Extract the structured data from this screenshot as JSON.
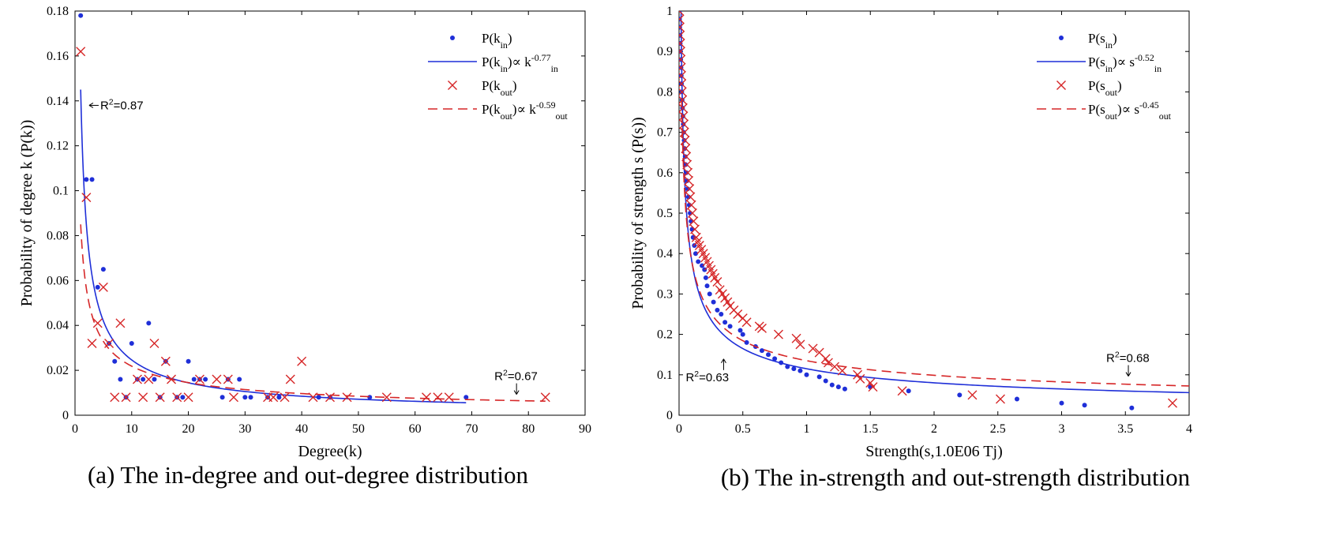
{
  "chart_data": [
    {
      "id": "a",
      "type": "scatter",
      "caption": "(a) The in-degree and out-degree distribution",
      "xlabel": "Degree(k)",
      "ylabel": "Probability of degree k (P(k))",
      "xlim": [
        0,
        90
      ],
      "ylim": [
        0,
        0.18
      ],
      "xticks": [
        0,
        10,
        20,
        30,
        40,
        50,
        60,
        70,
        80,
        90
      ],
      "yticks": [
        0,
        0.02,
        0.04,
        0.06,
        0.08,
        0.1,
        0.12,
        0.14,
        0.16,
        0.18
      ],
      "grid": false,
      "legend_position": "top-right",
      "series": [
        {
          "name": "P(k_in)",
          "kind": "dot",
          "color": "#1f2fd8",
          "points": [
            [
              1,
              0.178
            ],
            [
              2,
              0.105
            ],
            [
              3,
              0.105
            ],
            [
              4,
              0.057
            ],
            [
              5,
              0.065
            ],
            [
              6,
              0.032
            ],
            [
              7,
              0.024
            ],
            [
              8,
              0.016
            ],
            [
              9,
              0.008
            ],
            [
              10,
              0.032
            ],
            [
              11,
              0.016
            ],
            [
              12,
              0.016
            ],
            [
              13,
              0.041
            ],
            [
              14,
              0.016
            ],
            [
              15,
              0.008
            ],
            [
              16,
              0.024
            ],
            [
              18,
              0.008
            ],
            [
              19,
              0.008
            ],
            [
              20,
              0.024
            ],
            [
              21,
              0.016
            ],
            [
              22,
              0.016
            ],
            [
              23,
              0.016
            ],
            [
              26,
              0.008
            ],
            [
              27,
              0.016
            ],
            [
              29,
              0.016
            ],
            [
              30,
              0.008
            ],
            [
              31,
              0.008
            ],
            [
              34,
              0.008
            ],
            [
              36,
              0.008
            ],
            [
              43,
              0.008
            ],
            [
              45,
              0.008
            ],
            [
              52,
              0.008
            ],
            [
              69,
              0.008
            ]
          ]
        },
        {
          "name": "P(k_in)∝ k_in^-0.77",
          "kind": "line",
          "color": "#1f2fd8",
          "fit": {
            "a": 0.145,
            "b": -0.77,
            "xmin": 1,
            "xmax": 69
          }
        },
        {
          "name": "P(k_out)",
          "kind": "cross",
          "color": "#d62728",
          "points": [
            [
              1,
              0.162
            ],
            [
              2,
              0.097
            ],
            [
              3,
              0.032
            ],
            [
              4,
              0.041
            ],
            [
              5,
              0.057
            ],
            [
              6,
              0.032
            ],
            [
              7,
              0.008
            ],
            [
              8,
              0.041
            ],
            [
              9,
              0.008
            ],
            [
              11,
              0.016
            ],
            [
              12,
              0.008
            ],
            [
              13,
              0.016
            ],
            [
              14,
              0.032
            ],
            [
              15,
              0.008
            ],
            [
              16,
              0.024
            ],
            [
              17,
              0.016
            ],
            [
              18,
              0.008
            ],
            [
              20,
              0.008
            ],
            [
              22,
              0.016
            ],
            [
              25,
              0.016
            ],
            [
              27,
              0.016
            ],
            [
              28,
              0.008
            ],
            [
              34,
              0.008
            ],
            [
              35,
              0.008
            ],
            [
              37,
              0.008
            ],
            [
              38,
              0.016
            ],
            [
              40,
              0.024
            ],
            [
              42,
              0.008
            ],
            [
              45,
              0.008
            ],
            [
              48,
              0.008
            ],
            [
              55,
              0.008
            ],
            [
              62,
              0.008
            ],
            [
              64,
              0.008
            ],
            [
              66,
              0.008
            ],
            [
              83,
              0.008
            ]
          ]
        },
        {
          "name": "P(k_out)∝ k_out^-0.59",
          "kind": "dashed",
          "color": "#d62728",
          "fit": {
            "a": 0.085,
            "b": -0.59,
            "xmin": 1,
            "xmax": 83
          }
        }
      ],
      "legend": [
        {
          "base": "P(k",
          "sub": "in",
          "rest": ")",
          "sup": "",
          "sub2": "",
          "kind": "dot",
          "color": "#1f2fd8"
        },
        {
          "base": "P(k",
          "sub": "in",
          "rest": ")∝ k",
          "sup": "-0.77",
          "sub2": "in",
          "kind": "line",
          "color": "#1f2fd8"
        },
        {
          "base": "P(k",
          "sub": "out",
          "rest": ")",
          "sup": "",
          "sub2": "",
          "kind": "cross",
          "color": "#d62728"
        },
        {
          "base": "P(k",
          "sub": "out",
          "rest": ")∝ k",
          "sup": "-0.59",
          "sub2": "out",
          "kind": "dashed",
          "color": "#d62728"
        }
      ],
      "annotations": [
        {
          "text": "R",
          "sup": "2",
          "after": "=0.87",
          "x": 2.5,
          "y": 0.138,
          "arrow": "left"
        },
        {
          "text": "R",
          "sup": "2",
          "after": "=0.67",
          "x": 74,
          "y": 0.0135,
          "arrow": "down"
        }
      ]
    },
    {
      "id": "b",
      "type": "scatter",
      "caption": "(b) The in-strength and out-strength distribution",
      "xlabel": "Strength(s,1.0E06 Tj)",
      "ylabel": "Probability of strength s (P(s))",
      "xlim": [
        0,
        4
      ],
      "ylim": [
        0,
        1
      ],
      "xticks": [
        0,
        0.5,
        1,
        1.5,
        2,
        2.5,
        3,
        3.5,
        4
      ],
      "yticks": [
        0,
        0.1,
        0.2,
        0.3,
        0.4,
        0.5,
        0.6,
        0.7,
        0.8,
        0.9,
        1
      ],
      "grid": false,
      "legend_position": "top-right",
      "series": [
        {
          "name": "P(s_in)",
          "kind": "dot",
          "color": "#1f2fd8",
          "points": [
            [
              0.003,
              0.98
            ],
            [
              0.005,
              0.96
            ],
            [
              0.007,
              0.94
            ],
            [
              0.009,
              0.92
            ],
            [
              0.011,
              0.9
            ],
            [
              0.013,
              0.88
            ],
            [
              0.015,
              0.86
            ],
            [
              0.017,
              0.84
            ],
            [
              0.019,
              0.82
            ],
            [
              0.021,
              0.8
            ],
            [
              0.024,
              0.78
            ],
            [
              0.027,
              0.76
            ],
            [
              0.03,
              0.74
            ],
            [
              0.033,
              0.72
            ],
            [
              0.036,
              0.7
            ],
            [
              0.04,
              0.68
            ],
            [
              0.044,
              0.66
            ],
            [
              0.048,
              0.64
            ],
            [
              0.052,
              0.62
            ],
            [
              0.057,
              0.6
            ],
            [
              0.062,
              0.58
            ],
            [
              0.068,
              0.56
            ],
            [
              0.074,
              0.54
            ],
            [
              0.08,
              0.52
            ],
            [
              0.087,
              0.5
            ],
            [
              0.094,
              0.48
            ],
            [
              0.102,
              0.46
            ],
            [
              0.11,
              0.44
            ],
            [
              0.12,
              0.42
            ],
            [
              0.13,
              0.4
            ],
            [
              0.15,
              0.38
            ],
            [
              0.18,
              0.37
            ],
            [
              0.2,
              0.36
            ],
            [
              0.21,
              0.34
            ],
            [
              0.22,
              0.32
            ],
            [
              0.24,
              0.3
            ],
            [
              0.27,
              0.28
            ],
            [
              0.3,
              0.26
            ],
            [
              0.33,
              0.25
            ],
            [
              0.36,
              0.23
            ],
            [
              0.4,
              0.22
            ],
            [
              0.48,
              0.21
            ],
            [
              0.5,
              0.2
            ],
            [
              0.53,
              0.18
            ],
            [
              0.6,
              0.17
            ],
            [
              0.65,
              0.16
            ],
            [
              0.7,
              0.15
            ],
            [
              0.75,
              0.14
            ],
            [
              0.8,
              0.13
            ],
            [
              0.85,
              0.12
            ],
            [
              0.9,
              0.115
            ],
            [
              0.95,
              0.11
            ],
            [
              1.0,
              0.1
            ],
            [
              1.1,
              0.095
            ],
            [
              1.15,
              0.085
            ],
            [
              1.2,
              0.075
            ],
            [
              1.25,
              0.07
            ],
            [
              1.3,
              0.065
            ],
            [
              1.5,
              0.07
            ],
            [
              1.8,
              0.06
            ],
            [
              2.2,
              0.05
            ],
            [
              2.65,
              0.04
            ],
            [
              3.0,
              0.03
            ],
            [
              3.18,
              0.025
            ],
            [
              3.55,
              0.018
            ]
          ]
        },
        {
          "name": "P(s_in)∝ s_in^-0.52",
          "kind": "line",
          "color": "#1f2fd8",
          "fit": {
            "a": 0.115,
            "b": -0.52,
            "xmin": 0.014,
            "xmax": 4
          }
        },
        {
          "name": "P(s_out)",
          "kind": "cross",
          "color": "#d62728",
          "points": [
            [
              0.002,
              1.0
            ],
            [
              0.004,
              0.98
            ],
            [
              0.006,
              0.96
            ],
            [
              0.008,
              0.94
            ],
            [
              0.01,
              0.92
            ],
            [
              0.012,
              0.9
            ],
            [
              0.014,
              0.88
            ],
            [
              0.016,
              0.86
            ],
            [
              0.018,
              0.84
            ],
            [
              0.02,
              0.82
            ],
            [
              0.023,
              0.8
            ],
            [
              0.026,
              0.78
            ],
            [
              0.03,
              0.76
            ],
            [
              0.034,
              0.74
            ],
            [
              0.038,
              0.72
            ],
            [
              0.042,
              0.7
            ],
            [
              0.047,
              0.68
            ],
            [
              0.052,
              0.66
            ],
            [
              0.057,
              0.64
            ],
            [
              0.063,
              0.62
            ],
            [
              0.069,
              0.6
            ],
            [
              0.075,
              0.58
            ],
            [
              0.082,
              0.56
            ],
            [
              0.089,
              0.54
            ],
            [
              0.097,
              0.52
            ],
            [
              0.105,
              0.5
            ],
            [
              0.114,
              0.48
            ],
            [
              0.124,
              0.46
            ],
            [
              0.135,
              0.44
            ],
            [
              0.147,
              0.43
            ],
            [
              0.16,
              0.42
            ],
            [
              0.175,
              0.41
            ],
            [
              0.19,
              0.4
            ],
            [
              0.205,
              0.39
            ],
            [
              0.22,
              0.38
            ],
            [
              0.235,
              0.37
            ],
            [
              0.25,
              0.36
            ],
            [
              0.265,
              0.35
            ],
            [
              0.28,
              0.34
            ],
            [
              0.3,
              0.33
            ],
            [
              0.32,
              0.31
            ],
            [
              0.34,
              0.3
            ],
            [
              0.36,
              0.29
            ],
            [
              0.38,
              0.28
            ],
            [
              0.4,
              0.27
            ],
            [
              0.43,
              0.26
            ],
            [
              0.46,
              0.25
            ],
            [
              0.5,
              0.24
            ],
            [
              0.53,
              0.23
            ],
            [
              0.63,
              0.22
            ],
            [
              0.65,
              0.215
            ],
            [
              0.78,
              0.2
            ],
            [
              0.92,
              0.19
            ],
            [
              0.95,
              0.175
            ],
            [
              1.05,
              0.165
            ],
            [
              1.1,
              0.155
            ],
            [
              1.15,
              0.14
            ],
            [
              1.17,
              0.13
            ],
            [
              1.22,
              0.12
            ],
            [
              1.28,
              0.11
            ],
            [
              1.4,
              0.1
            ],
            [
              1.42,
              0.09
            ],
            [
              1.5,
              0.08
            ],
            [
              1.52,
              0.07
            ],
            [
              1.75,
              0.06
            ],
            [
              2.3,
              0.05
            ],
            [
              2.52,
              0.04
            ],
            [
              3.87,
              0.03
            ]
          ]
        },
        {
          "name": "P(s_out)∝ s_out^-0.45",
          "kind": "dashed",
          "color": "#d62728",
          "fit": {
            "a": 0.135,
            "b": -0.45,
            "xmin": 0.02,
            "xmax": 4
          }
        }
      ],
      "legend": [
        {
          "base": "P(s",
          "sub": "in",
          "rest": ")",
          "sup": "",
          "sub2": "",
          "kind": "dot",
          "color": "#1f2fd8"
        },
        {
          "base": "P(s",
          "sub": "in",
          "rest": ")∝ s",
          "sup": "-0.52",
          "sub2": "in",
          "kind": "line",
          "color": "#1f2fd8"
        },
        {
          "base": "P(s",
          "sub": "out",
          "rest": ")",
          "sup": "",
          "sub2": "",
          "kind": "cross",
          "color": "#d62728"
        },
        {
          "base": "P(s",
          "sub": "out",
          "rest": ")∝ s",
          "sup": "-0.45",
          "sub2": "out",
          "kind": "dashed",
          "color": "#d62728"
        }
      ],
      "annotations": [
        {
          "text": "R",
          "sup": "2",
          "after": "=0.63",
          "x": 0.3,
          "y": 0.1,
          "arrow": "up"
        },
        {
          "text": "R",
          "sup": "2",
          "after": "=0.68",
          "x": 3.35,
          "y": 0.12,
          "arrow": "down"
        }
      ]
    }
  ]
}
